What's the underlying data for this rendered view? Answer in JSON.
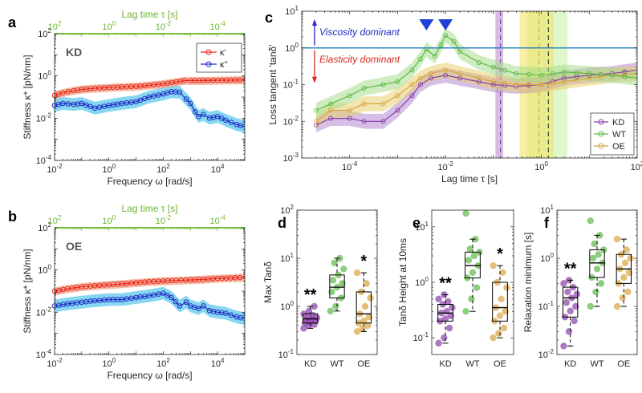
{
  "colors": {
    "kappa_prime": "#e8281e",
    "kappa_prime_band": "#f4a080",
    "kappa_dprime": "#1c2bc4",
    "kappa_dprime_band": "#5fc8ee",
    "KD": "#8a3fa8",
    "WT": "#5cb847",
    "OE": "#d9a441",
    "threshold": "#2e86c1",
    "viscosity_arrow": "#2727c8",
    "elasticity_arrow": "#d62a1f",
    "green_axis": "#6cb52d",
    "marker": "#1f3fd6"
  },
  "chart_data": [
    {
      "id": "a",
      "panel_label": "a",
      "inset_label": "KD",
      "type": "line",
      "xscale": "log",
      "yscale": "log",
      "xlim": [
        0.01,
        100000
      ],
      "ylim": [
        0.0001,
        100
      ],
      "xlabel": "Frequency ω [rad/s]",
      "ylabel": "Stiffness κ* [pN/nm]",
      "top_axis_label": "Lag time τ [s]",
      "x_tick_labels": [
        "10-2",
        "100",
        "102",
        "104"
      ],
      "y_tick_labels": [
        "10-4",
        "10-2",
        "100",
        "102"
      ],
      "top_tick_labels": [
        "102",
        "100",
        "10-2",
        "10-4"
      ],
      "legend": [
        "κ'",
        "κ''"
      ],
      "legend_position": "top-right",
      "series": [
        {
          "name": "κ'",
          "points": [
            [
              0.01,
              0.12
            ],
            [
              0.02,
              0.16
            ],
            [
              0.05,
              0.2
            ],
            [
              0.1,
              0.23
            ],
            [
              0.3,
              0.26
            ],
            [
              1,
              0.28
            ],
            [
              3,
              0.3
            ],
            [
              10,
              0.32
            ],
            [
              30,
              0.36
            ],
            [
              100,
              0.42
            ],
            [
              300,
              0.52
            ],
            [
              600,
              0.6
            ],
            [
              1000,
              0.6
            ],
            [
              3000,
              0.6
            ],
            [
              10000,
              0.62
            ],
            [
              30000,
              0.63
            ],
            [
              100000,
              0.65
            ]
          ]
        },
        {
          "name": "κ''",
          "points": [
            [
              0.01,
              0.04
            ],
            [
              0.02,
              0.05
            ],
            [
              0.05,
              0.045
            ],
            [
              0.1,
              0.05
            ],
            [
              0.3,
              0.03
            ],
            [
              1,
              0.04
            ],
            [
              3,
              0.05
            ],
            [
              10,
              0.06
            ],
            [
              30,
              0.1
            ],
            [
              100,
              0.14
            ],
            [
              200,
              0.18
            ],
            [
              400,
              0.17
            ],
            [
              700,
              0.08
            ],
            [
              1000,
              0.05
            ],
            [
              1500,
              0.02
            ],
            [
              2000,
              0.012
            ],
            [
              3000,
              0.015
            ],
            [
              5000,
              0.01
            ],
            [
              10000,
              0.012
            ],
            [
              20000,
              0.008
            ],
            [
              50000,
              0.005
            ],
            [
              100000,
              0.004
            ]
          ]
        }
      ]
    },
    {
      "id": "b",
      "panel_label": "b",
      "inset_label": "OE",
      "type": "line",
      "xscale": "log",
      "yscale": "log",
      "xlim": [
        0.01,
        100000
      ],
      "ylim": [
        0.0001,
        100
      ],
      "xlabel": "Frequency ω [rad/s]",
      "ylabel": "Stiffness κ* [pN/nm]",
      "top_axis_label": "Lag time τ [s]",
      "x_tick_labels": [
        "10-2",
        "100",
        "102",
        "104"
      ],
      "y_tick_labels": [
        "10-4",
        "10-2",
        "100",
        "102"
      ],
      "top_tick_labels": [
        "102",
        "100",
        "10-2",
        "10-4"
      ],
      "series": [
        {
          "name": "κ'",
          "points": [
            [
              0.01,
              0.1
            ],
            [
              0.03,
              0.13
            ],
            [
              0.1,
              0.16
            ],
            [
              0.3,
              0.18
            ],
            [
              1,
              0.2
            ],
            [
              3,
              0.22
            ],
            [
              10,
              0.25
            ],
            [
              30,
              0.28
            ],
            [
              100,
              0.3
            ],
            [
              300,
              0.32
            ],
            [
              1000,
              0.34
            ],
            [
              3000,
              0.36
            ],
            [
              10000,
              0.4
            ],
            [
              30000,
              0.42
            ],
            [
              100000,
              0.45
            ]
          ]
        },
        {
          "name": "κ''",
          "points": [
            [
              0.01,
              0.02
            ],
            [
              0.03,
              0.025
            ],
            [
              0.1,
              0.03
            ],
            [
              0.3,
              0.035
            ],
            [
              1,
              0.04
            ],
            [
              3,
              0.04
            ],
            [
              10,
              0.05
            ],
            [
              30,
              0.06
            ],
            [
              100,
              0.08
            ],
            [
              200,
              0.05
            ],
            [
              400,
              0.02
            ],
            [
              700,
              0.03
            ],
            [
              1000,
              0.02
            ],
            [
              2000,
              0.015
            ],
            [
              3000,
              0.02
            ],
            [
              5000,
              0.012
            ],
            [
              10000,
              0.01
            ],
            [
              20000,
              0.009
            ],
            [
              50000,
              0.006
            ],
            [
              100000,
              0.005
            ]
          ]
        }
      ]
    },
    {
      "id": "c",
      "panel_label": "c",
      "type": "line",
      "xscale": "log",
      "yscale": "log",
      "xlim": [
        1e-05,
        100
      ],
      "ylim": [
        0.001,
        10
      ],
      "xlabel": "Lag time τ [s]",
      "ylabel": "Loss tangent 'tanδ'",
      "x_tick_labels": [
        "10-4",
        "10-2",
        "100",
        "102"
      ],
      "y_tick_labels": [
        "10-3",
        "10-2",
        "10-1",
        "100",
        "101"
      ],
      "annotations": [
        "Viscosity dominant",
        "Elasticity dominant"
      ],
      "threshold_y": 1,
      "markers_x": [
        0.004,
        0.01
      ],
      "bands": [
        {
          "group": "KD",
          "range": [
            0.11,
            0.16
          ],
          "line": 0.14
        },
        {
          "group": "OE",
          "range": [
            0.35,
            1.8
          ],
          "line": 0.9
        },
        {
          "group": "WT",
          "range": [
            0.5,
            3.5
          ],
          "line": 1.4
        }
      ],
      "legend": [
        "KD",
        "WT",
        "OE"
      ],
      "legend_position": "bottom-right",
      "series": [
        {
          "name": "KD",
          "points": [
            [
              2e-05,
              0.008
            ],
            [
              4e-05,
              0.012
            ],
            [
              0.0001,
              0.012
            ],
            [
              0.0002,
              0.01
            ],
            [
              0.0005,
              0.01
            ],
            [
              0.001,
              0.02
            ],
            [
              0.002,
              0.05
            ],
            [
              0.003,
              0.1
            ],
            [
              0.005,
              0.15
            ],
            [
              0.01,
              0.18
            ],
            [
              0.02,
              0.15
            ],
            [
              0.05,
              0.12
            ],
            [
              0.1,
              0.1
            ],
            [
              0.3,
              0.09
            ],
            [
              1,
              0.1
            ],
            [
              3,
              0.15
            ],
            [
              10,
              0.18
            ],
            [
              30,
              0.2
            ],
            [
              100,
              0.25
            ]
          ]
        },
        {
          "name": "WT",
          "points": [
            [
              2e-05,
              0.02
            ],
            [
              4e-05,
              0.03
            ],
            [
              0.0001,
              0.05
            ],
            [
              0.0002,
              0.08
            ],
            [
              0.0005,
              0.1
            ],
            [
              0.001,
              0.12
            ],
            [
              0.002,
              0.25
            ],
            [
              0.003,
              0.5
            ],
            [
              0.004,
              0.9
            ],
            [
              0.006,
              0.6
            ],
            [
              0.008,
              1.2
            ],
            [
              0.01,
              2.2
            ],
            [
              0.015,
              1.5
            ],
            [
              0.02,
              0.8
            ],
            [
              0.05,
              0.4
            ],
            [
              0.1,
              0.3
            ],
            [
              0.3,
              0.2
            ],
            [
              1,
              0.18
            ],
            [
              3,
              0.22
            ],
            [
              10,
              0.2
            ],
            [
              30,
              0.18
            ],
            [
              100,
              0.15
            ]
          ]
        },
        {
          "name": "OE",
          "points": [
            [
              2e-05,
              0.01
            ],
            [
              4e-05,
              0.02
            ],
            [
              0.0001,
              0.02
            ],
            [
              0.0002,
              0.03
            ],
            [
              0.0005,
              0.03
            ],
            [
              0.001,
              0.05
            ],
            [
              0.002,
              0.1
            ],
            [
              0.003,
              0.15
            ],
            [
              0.005,
              0.2
            ],
            [
              0.01,
              0.25
            ],
            [
              0.02,
              0.2
            ],
            [
              0.05,
              0.15
            ],
            [
              0.1,
              0.12
            ],
            [
              0.3,
              0.1
            ],
            [
              1,
              0.1
            ],
            [
              3,
              0.12
            ],
            [
              10,
              0.15
            ],
            [
              30,
              0.18
            ],
            [
              100,
              0.2
            ]
          ]
        }
      ]
    },
    {
      "id": "d",
      "panel_label": "d",
      "type": "box",
      "yscale": "log",
      "ylim": [
        0.1,
        100
      ],
      "ylabel": "Max Tanδ",
      "categories": [
        "KD",
        "WT",
        "OE"
      ],
      "y_tick_labels": [
        "10-1",
        "100",
        "101",
        "102"
      ],
      "significance": [
        "**",
        "",
        "*"
      ],
      "groups": [
        {
          "name": "KD",
          "min": 0.35,
          "q1": 0.45,
          "median": 0.55,
          "q3": 0.7,
          "max": 1.0,
          "points": [
            0.35,
            0.4,
            0.42,
            0.45,
            0.48,
            0.5,
            0.52,
            0.55,
            0.58,
            0.6,
            0.65,
            0.7,
            0.8,
            1.0
          ]
        },
        {
          "name": "WT",
          "min": 0.8,
          "q1": 1.5,
          "median": 2.5,
          "q3": 4.5,
          "max": 10,
          "points": [
            0.8,
            1.0,
            1.5,
            2.0,
            2.5,
            3.0,
            3.5,
            4.5,
            6.0,
            8.0,
            10.0
          ]
        },
        {
          "name": "OE",
          "min": 0.3,
          "q1": 0.45,
          "median": 0.7,
          "q3": 2.0,
          "max": 5.0,
          "points": [
            0.3,
            0.35,
            0.4,
            0.45,
            0.5,
            0.6,
            0.7,
            1.0,
            1.5,
            2.0,
            3.0,
            5.0
          ]
        }
      ]
    },
    {
      "id": "e",
      "panel_label": "e",
      "type": "box",
      "yscale": "log",
      "ylim": [
        0.05,
        20
      ],
      "ylabel": "Tanδ Height at 10ms",
      "categories": [
        "KD",
        "WT",
        "OE"
      ],
      "y_tick_labels": [
        "10-1",
        "100",
        "101"
      ],
      "significance": [
        "**",
        "",
        "*"
      ],
      "groups": [
        {
          "name": "KD",
          "min": 0.08,
          "q1": 0.2,
          "median": 0.28,
          "q3": 0.4,
          "max": 0.6,
          "points": [
            0.08,
            0.1,
            0.15,
            0.2,
            0.22,
            0.25,
            0.28,
            0.3,
            0.35,
            0.4,
            0.45,
            0.5,
            0.6
          ]
        },
        {
          "name": "WT",
          "min": 0.3,
          "q1": 1.2,
          "median": 2.0,
          "q3": 3.5,
          "max": 6.0,
          "points": [
            0.3,
            0.5,
            0.8,
            1.2,
            1.5,
            2.0,
            2.5,
            3.0,
            3.5,
            4.0,
            6.0,
            20.0
          ]
        },
        {
          "name": "OE",
          "min": 0.1,
          "q1": 0.2,
          "median": 0.35,
          "q3": 1.0,
          "max": 2.0,
          "points": [
            0.1,
            0.12,
            0.15,
            0.2,
            0.25,
            0.3,
            0.35,
            0.5,
            0.8,
            1.0,
            1.5,
            2.0
          ]
        }
      ]
    },
    {
      "id": "f",
      "panel_label": "f",
      "type": "box",
      "yscale": "log",
      "ylim": [
        0.01,
        10
      ],
      "ylabel": "Relaxation minimum [s]",
      "categories": [
        "KD",
        "WT",
        "OE"
      ],
      "y_tick_labels": [
        "10-2",
        "10-1",
        "100",
        "101"
      ],
      "significance": [
        "**",
        "",
        ""
      ],
      "groups": [
        {
          "name": "KD",
          "min": 0.015,
          "q1": 0.06,
          "median": 0.15,
          "q3": 0.25,
          "max": 0.35,
          "points": [
            0.015,
            0.03,
            0.05,
            0.06,
            0.08,
            0.1,
            0.12,
            0.15,
            0.18,
            0.2,
            0.25,
            0.3,
            0.35
          ]
        },
        {
          "name": "WT",
          "min": 0.1,
          "q1": 0.4,
          "median": 0.8,
          "q3": 1.5,
          "max": 3.0,
          "points": [
            0.1,
            0.2,
            0.3,
            0.4,
            0.6,
            0.8,
            1.0,
            1.2,
            1.5,
            2.0,
            3.0,
            6.0
          ]
        },
        {
          "name": "OE",
          "min": 0.1,
          "q1": 0.3,
          "median": 0.6,
          "q3": 1.2,
          "max": 2.5,
          "points": [
            0.1,
            0.15,
            0.2,
            0.3,
            0.4,
            0.5,
            0.6,
            0.8,
            1.0,
            1.2,
            1.5,
            2.5
          ]
        }
      ]
    }
  ]
}
